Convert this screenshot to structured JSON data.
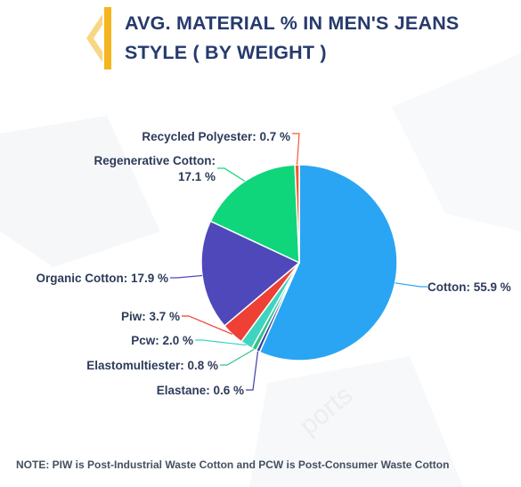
{
  "header": {
    "title_line1": "AVG. MATERIAL % IN MEN'S JEANS",
    "title_line2": "STYLE ( BY WEIGHT )",
    "accent_color": "#f4b51e",
    "title_color": "#263a6d"
  },
  "chart_data": {
    "type": "pie",
    "title": "AVG. MATERIAL % IN MEN'S JEANS STYLE ( BY WEIGHT )",
    "unit": "%",
    "slices": [
      {
        "name": "Cotton",
        "value": 55.9,
        "label": "Cotton: 55.9 %",
        "color": "#2aa5f3"
      },
      {
        "name": "Elastane",
        "value": 0.6,
        "label": "Elastane: 0.6 %",
        "color": "#3f3da8"
      },
      {
        "name": "Elastomultiester",
        "value": 0.8,
        "label": "Elastomultiester: 0.8 %",
        "color": "#2ec486"
      },
      {
        "name": "Pcw",
        "value": 2.0,
        "label": "Pcw: 2.0 %",
        "color": "#3fd4bf"
      },
      {
        "name": "Piw",
        "value": 3.7,
        "label": "Piw: 3.7 %",
        "color": "#ee4035"
      },
      {
        "name": "Organic Cotton",
        "value": 17.9,
        "label": "Organic Cotton: 17.9 %",
        "color": "#4e48ba"
      },
      {
        "name": "Regenerative Cotton",
        "value": 17.1,
        "label_line1": "Regenerative Cotton:",
        "label_line2": "17.1 %",
        "color": "#0fd67a"
      },
      {
        "name": "Recycled Polyester",
        "value": 0.7,
        "label": "Recycled Polyester: 0.7 %",
        "color": "#f05a2d"
      }
    ],
    "small_gap_slice_color": "#2aa5f3",
    "legend": "none"
  },
  "note": "NOTE: PIW is Post-Industrial Waste Cotton and PCW is Post-Consumer Waste Cotton",
  "watermark": "ports"
}
